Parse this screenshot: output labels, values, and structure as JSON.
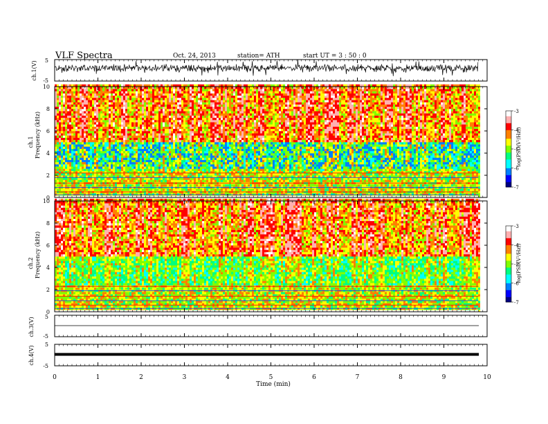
{
  "header": {
    "title": "VLF  Spectra",
    "date": "Oct. 24, 2013",
    "station": "station= ATH",
    "start": "start  UT  =   3  : 50 : 0"
  },
  "colorbar": {
    "label": "log(PSD(V²/Hz))",
    "ticks": [
      "-3",
      "-4",
      "-5",
      "-6",
      "-7"
    ],
    "range": [
      -7,
      -3
    ],
    "colors": [
      "#000080",
      "#0000ff",
      "#0080ff",
      "#00ffff",
      "#00ff80",
      "#80ff00",
      "#ffff00",
      "#ff8000",
      "#ff0000",
      "#ffb0b0",
      "#ffffff"
    ]
  },
  "chart_data": [
    {
      "type": "line",
      "name": "ch1",
      "ylabel": "ch.1(V)",
      "yticks": [
        "5",
        "-5"
      ],
      "ylim": [
        -5,
        5
      ],
      "description_values": {
        "mean": 1.0,
        "amplitude": 1.5
      }
    },
    {
      "type": "heatmap",
      "name": "ch1-spectrogram",
      "ylabel_channel": "ch.1",
      "ylabel": "Frequency  (kHz)",
      "yticks": [
        "10",
        "8",
        "6",
        "4",
        "2",
        "0"
      ],
      "ylim": [
        0,
        10
      ]
    },
    {
      "type": "heatmap",
      "name": "ch2-spectrogram",
      "ylabel_channel": "ch.2",
      "ylabel": "Frequency  (kHz)",
      "yticks": [
        "10",
        "8",
        "6",
        "4",
        "2",
        "0"
      ],
      "ylim": [
        0,
        10
      ]
    },
    {
      "type": "line",
      "name": "ch3",
      "ylabel": "ch.3(V)",
      "yticks": [
        "5",
        "-5"
      ],
      "ylim": [
        -5,
        5
      ],
      "constant": -0.5
    },
    {
      "type": "line",
      "name": "ch4",
      "ylabel": "ch.4(V)",
      "yticks": [
        "5",
        "-5"
      ],
      "ylim": [
        -5,
        5
      ],
      "constant": 0.0
    }
  ],
  "xaxis": {
    "label": "Time  (min)",
    "ticks": [
      "0",
      "1",
      "2",
      "3",
      "4",
      "5",
      "6",
      "7",
      "8",
      "9",
      "10"
    ],
    "xlim": [
      0,
      10
    ],
    "data_end": 9.8
  }
}
